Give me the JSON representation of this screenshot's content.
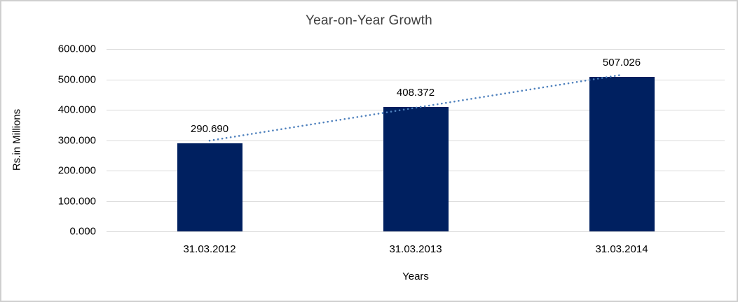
{
  "chart_data": {
    "type": "bar",
    "title": "Year-on-Year Growth",
    "xlabel": "Years",
    "ylabel": "Rs.in Millions",
    "categories": [
      "31.03.2012",
      "31.03.2013",
      "31.03.2014"
    ],
    "values": [
      290.69,
      408.372,
      507.026
    ],
    "data_labels": [
      "290.690",
      "408.372",
      "507.026"
    ],
    "ylim": [
      0,
      600
    ],
    "ytick_step": 100,
    "ytick_labels": [
      "600.000",
      "500.000",
      "400.000",
      "300.000",
      "200.000",
      "100.000",
      "0.000"
    ],
    "grid": true,
    "legend": false,
    "trendline": {
      "style": "dotted",
      "color": "#4f81bd",
      "type": "linear"
    },
    "colors": {
      "bar": "#002060",
      "gridline": "#d9d9d9",
      "trendline": "#4f81bd",
      "frame_border": "#cfcfcf",
      "title_text": "#3f3f3f",
      "axis_text": "#000000"
    }
  }
}
